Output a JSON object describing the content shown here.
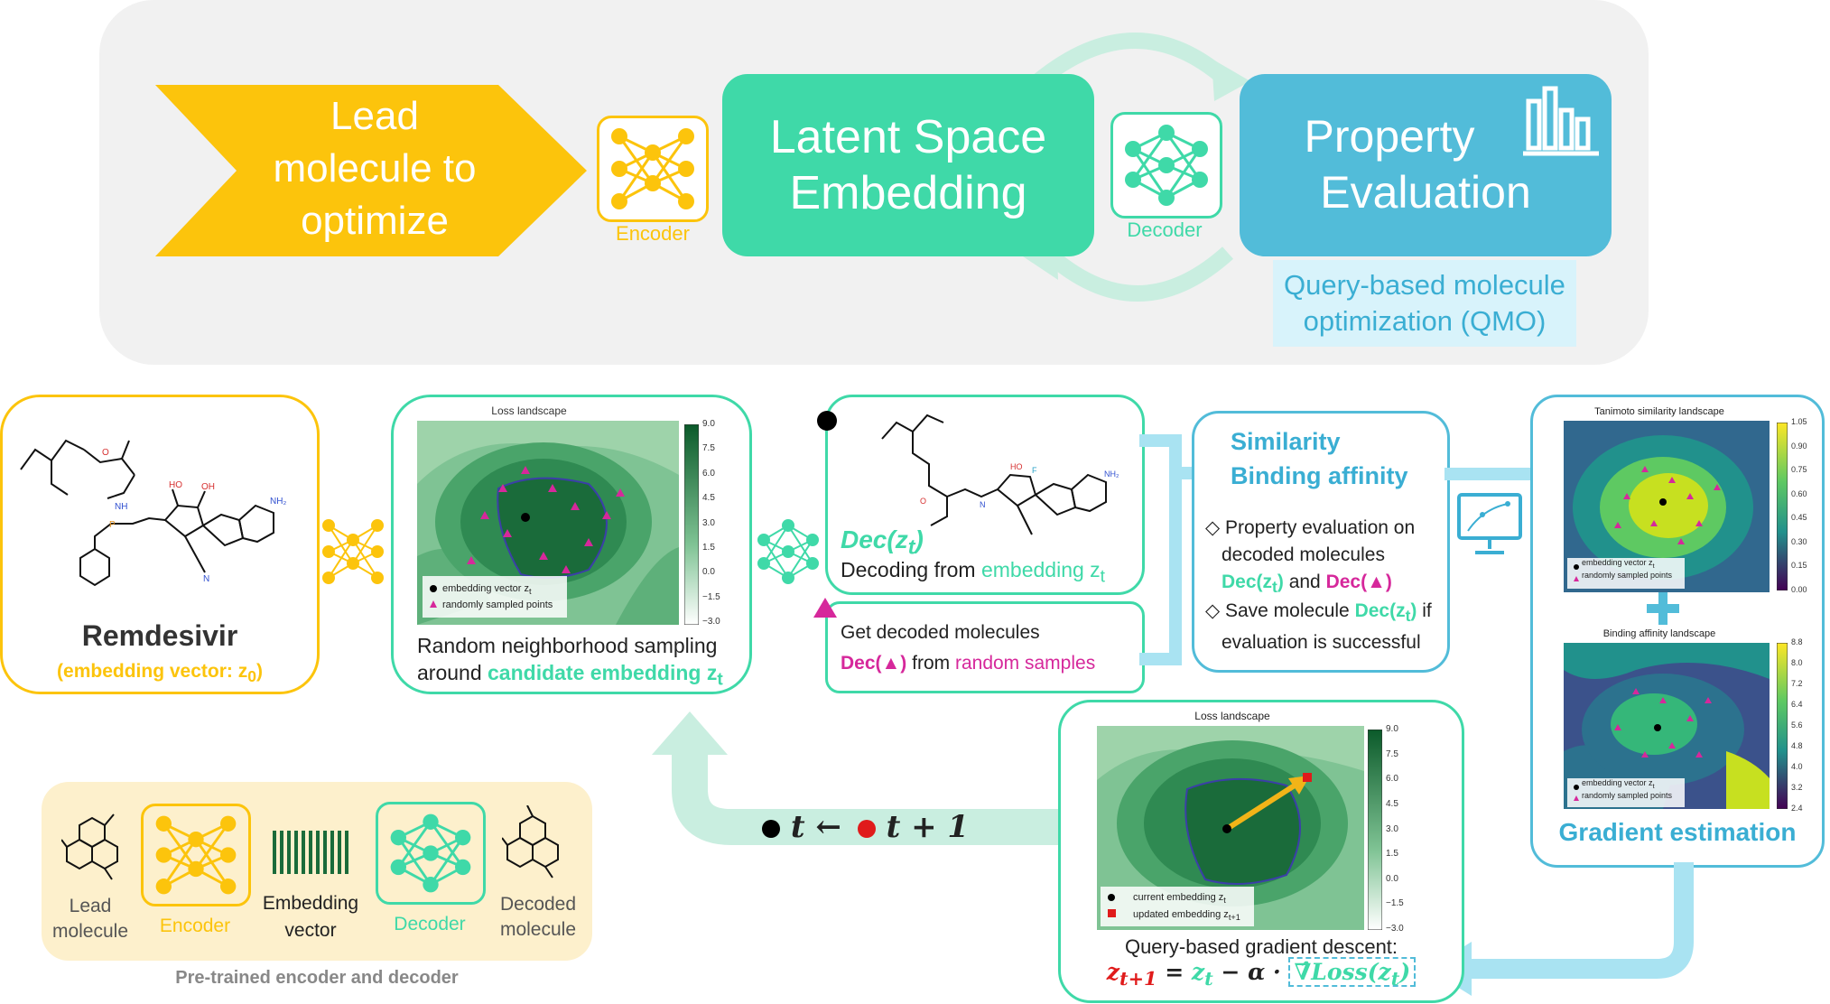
{
  "top": {
    "lead_line1": "Lead",
    "lead_line2": "molecule to",
    "lead_line3": "optimize",
    "encoder_label": "Encoder",
    "latent_line1": "Latent Space",
    "latent_line2": "Embedding",
    "decoder_label": "Decoder",
    "property_line1": "Property",
    "property_line2": "Evaluation",
    "qmo_line1": "Query-based molecule",
    "qmo_line2": "optimization (QMO)"
  },
  "remdesivir": {
    "name": "Remdesivir",
    "caption": "(embedding vector: z",
    "caption_sub": "0",
    "caption_end": ")"
  },
  "sampling": {
    "plot_title": "Loss landscape",
    "legend1": "embedding vector z",
    "legend1_sub": "t",
    "legend2": "randomly sampled points",
    "colorbar_ticks": [
      "9.0",
      "7.5",
      "6.0",
      "4.5",
      "3.0",
      "1.5",
      "0.0",
      "−1.5",
      "−3.0"
    ],
    "caption_line1": "Random neighborhood sampling",
    "caption_line2_a": "around ",
    "caption_line2_b": "candidate embedding z",
    "caption_line2_sub": "t"
  },
  "decoding": {
    "dec_label": "Dec(z",
    "dec_sub": "t",
    "dec_end": ")",
    "caption_a": "Decoding from ",
    "caption_b": "embedding z",
    "caption_sub": "t",
    "get_line1": "Get decoded molecules",
    "get_dec": "Dec(▲)",
    "get_from": " from ",
    "get_random": "random samples"
  },
  "similarity": {
    "title1": "Similarity",
    "title2": "Binding affinity",
    "b1_a": "Property evaluation on",
    "b1_b": "decoded molecules",
    "b1_dec1": "Dec(z",
    "b1_dec1_sub": "t",
    "b1_dec1_end": ")",
    "b1_and": " and ",
    "b1_dec2": "Dec(▲)",
    "b2_a": "Save molecule ",
    "b2_dec": "Dec(z",
    "b2_dec_sub": "t",
    "b2_dec_end": ")",
    "b2_b": " if",
    "b2_c": "evaluation is successful"
  },
  "gradient": {
    "tanimoto_title": "Tanimoto similarity landscape",
    "tanimoto_ticks": [
      "1.05",
      "0.90",
      "0.75",
      "0.60",
      "0.45",
      "0.30",
      "0.15",
      "0.00"
    ],
    "binding_title": "Binding affinity landscape",
    "binding_ticks": [
      "8.8",
      "8.0",
      "7.2",
      "6.4",
      "5.6",
      "4.8",
      "4.0",
      "3.2",
      "2.4"
    ],
    "legend1": "embedding vector z",
    "legend1_sub": "t",
    "legend2": "randomly sampled points",
    "caption": "Gradient estimation"
  },
  "descent": {
    "plot_title": "Loss landscape",
    "colorbar_ticks": [
      "9.0",
      "7.5",
      "6.0",
      "4.5",
      "3.0",
      "1.5",
      "0.0",
      "−1.5",
      "−3.0"
    ],
    "legend1": "current embedding z",
    "legend1_sub": "t",
    "legend2": "updated embedding z",
    "legend2_sub": "t+1",
    "caption": "Query-based gradient descent:",
    "eq_lhs": "z",
    "eq_lhs_sub": "t+1",
    "eq_eq": " = ",
    "eq_zt": "z",
    "eq_zt_sub": "t",
    "eq_mid": " − α · ",
    "eq_grad": "∇̂Loss(z",
    "eq_grad_sub": "t",
    "eq_grad_end": ")"
  },
  "update": {
    "t": "t ←",
    "t1": "t + 1"
  },
  "pretrained": {
    "lead_line1": "Lead",
    "lead_line2": "molecule",
    "encoder": "Encoder",
    "emb_line1": "Embedding",
    "emb_line2": "vector",
    "decoder": "Decoder",
    "dec_line1": "Decoded",
    "dec_line2": "molecule",
    "caption": "Pre-trained encoder and decoder"
  },
  "colors": {
    "yellow": "#fcc40c",
    "green": "#3fd9a8",
    "blue": "#52bcd9",
    "teal_text": "#3aaed3",
    "magenta": "#d6289b",
    "red": "#e01b1b"
  }
}
